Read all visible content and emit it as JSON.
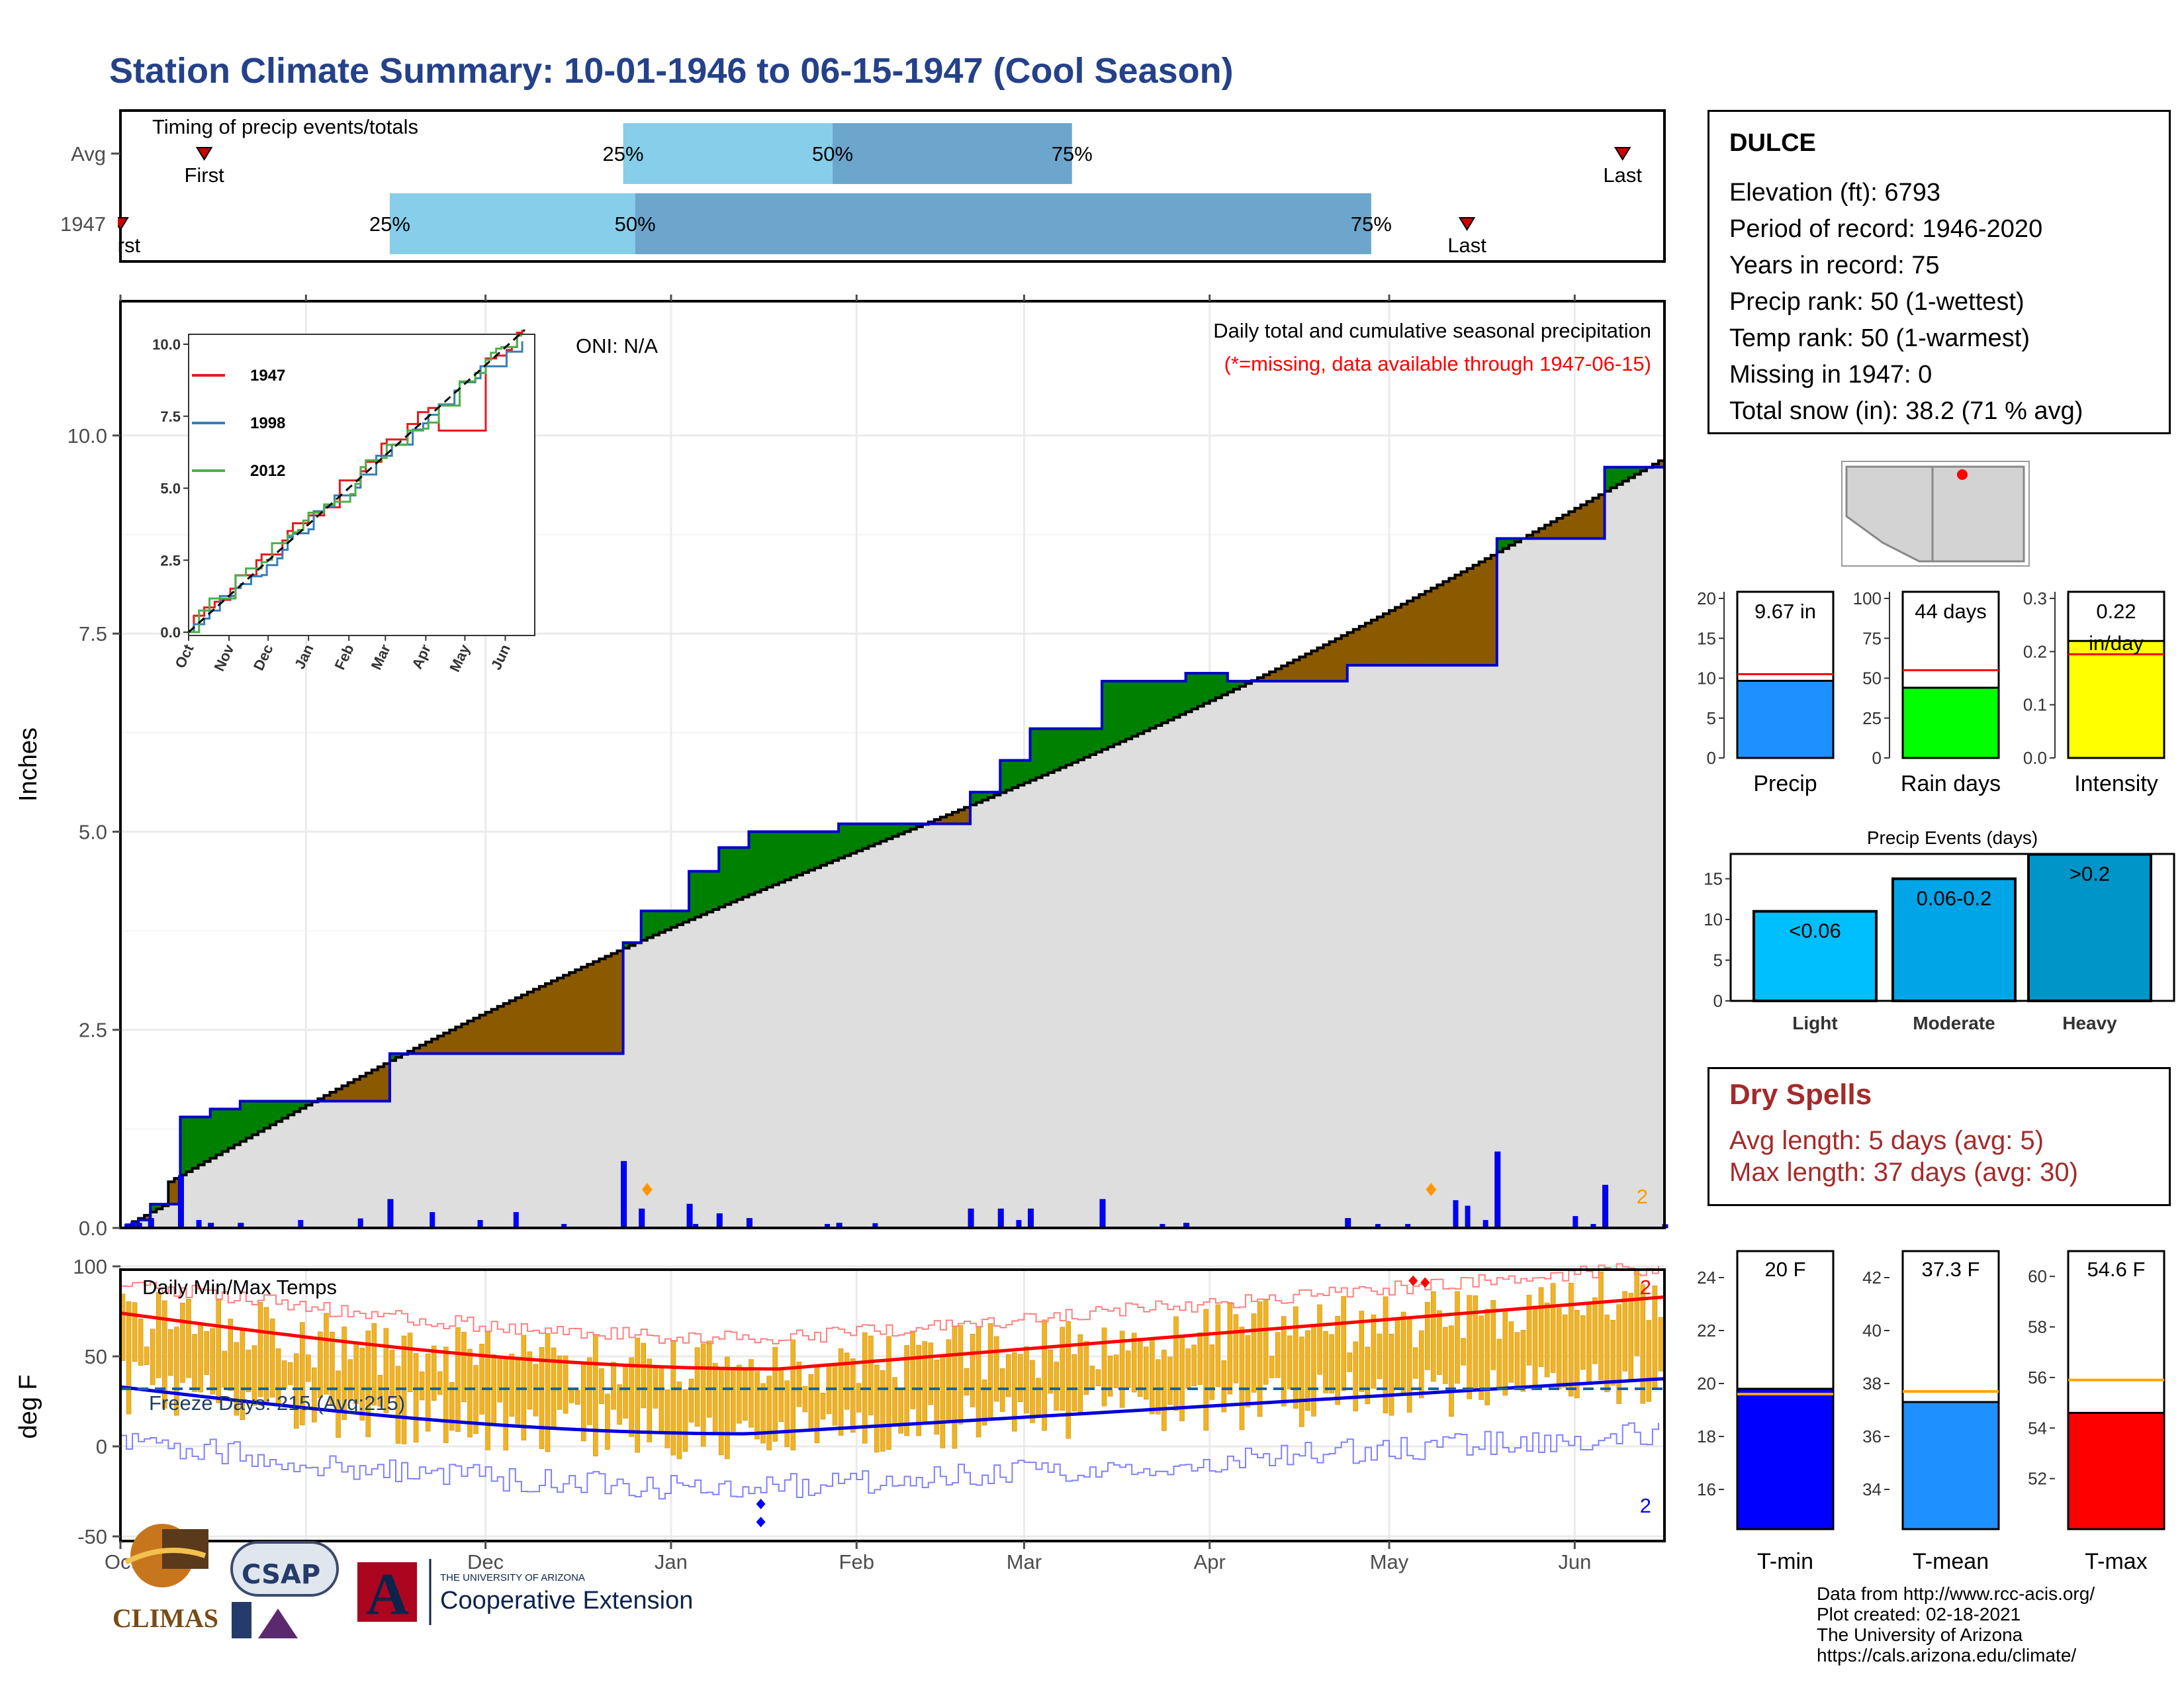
{
  "title": "Station Climate Summary: 10-01-1946 to 06-15-1947 (Cool Season)",
  "timing": {
    "label": "Timing of precip events/totals",
    "rows": [
      {
        "name": "Avg",
        "first_day": 14,
        "q25_day": 84,
        "q50_day": 119,
        "q75_day": 159,
        "last_day": 251,
        "first_label": "First",
        "last_label": "Last"
      },
      {
        "name": "1947",
        "first_day": 0,
        "q25_day": 45,
        "q50_day": 86,
        "q75_day": 209,
        "last_day": 225,
        "first_label": "First",
        "last_label": "Last"
      }
    ],
    "pct_labels": [
      "25%",
      "50%",
      "75%"
    ],
    "colors": {
      "light": "#87ceeb",
      "dark": "#6ca6cd",
      "marker": "#cc0000"
    }
  },
  "precip_chart": {
    "ylabel": "Inches",
    "oni_label": "ONI: N/A",
    "note_title": "Daily total and cumulative seasonal precipitation",
    "note_missing": "(*=missing, data available through 1947-06-15)",
    "corner_count": "2",
    "yticks": [
      "0.0",
      "2.5",
      "5.0",
      "7.5",
      "10.0"
    ],
    "ylim": [
      0,
      11
    ]
  },
  "inset": {
    "yticks": [
      "0.0",
      "2.5",
      "5.0",
      "7.5",
      "10.0"
    ],
    "xticks": [
      "Oct",
      "Nov",
      "Dec",
      "Jan",
      "Feb",
      "Mar",
      "Apr",
      "May",
      "Jun"
    ],
    "legend": [
      {
        "name": "1947",
        "color": "#e41a1c"
      },
      {
        "name": "1998",
        "color": "#377eb8"
      },
      {
        "name": "2012",
        "color": "#4daf4a"
      }
    ]
  },
  "temp_chart": {
    "ylabel": "deg F",
    "title": "Daily Min/Max Temps",
    "freeze_label": "Freeze Days: 215 (Avg:215)",
    "max_count": "2",
    "min_count": "2",
    "yticks": [
      "-50",
      "0",
      "50",
      "100"
    ],
    "ylim": [
      -55,
      103
    ],
    "xticks": [
      "Oct",
      "Nov",
      "Dec",
      "Jan",
      "Feb",
      "Mar",
      "Apr",
      "May",
      "Jun"
    ]
  },
  "station": {
    "name": "DULCE",
    "rows": [
      "Elevation (ft): 6793",
      "Period of record: 1946-2020",
      "Years in record: 75",
      "Precip rank: 50 (1-wettest)",
      "Temp rank: 50 (1-warmest)",
      "Missing in 1947: 0",
      "Total snow (in): 38.2 (71 % avg)"
    ]
  },
  "mini_bars": [
    {
      "label": "Precip",
      "value": 9.67,
      "value_label": "9.67 in",
      "avg": 10.5,
      "ymax": 20,
      "ticks": [
        "0",
        "5",
        "10",
        "15",
        "20"
      ],
      "color": "#1e90ff"
    },
    {
      "label": "Rain days",
      "value": 44,
      "value_label": "44 days",
      "avg": 55,
      "ymax": 100,
      "ticks": [
        "0",
        "25",
        "50",
        "75",
        "100"
      ],
      "color": "#00ff00"
    },
    {
      "label": "Intensity",
      "value": 0.22,
      "value_label": "0.22 in/day",
      "avg": 0.195,
      "ymax": 0.3,
      "ticks": [
        "0.0",
        "0.1",
        "0.2",
        "0.3"
      ],
      "color": "#ffff00"
    }
  ],
  "precip_events": {
    "title": "Precip Events (days)",
    "yticks": [
      "0",
      "5",
      "10",
      "15"
    ],
    "categories": [
      "Light",
      "Moderate",
      "Heavy"
    ],
    "bin_labels": [
      "<0.06",
      "0.06-0.2",
      ">0.2"
    ],
    "values": [
      11,
      15,
      18
    ],
    "colors": [
      "#00bfff",
      "#00a5e8",
      "#0095c8"
    ]
  },
  "dry_spells": {
    "title": "Dry Spells",
    "avg_line": "Avg length: 5 days (avg: 5)",
    "max_line": "Max length: 37 days (avg: 30)"
  },
  "temp_bars": [
    {
      "label": "T-min",
      "value": 19.8,
      "value_label": "20 F",
      "avg": 19.6,
      "ymin": 14.5,
      "ymax": 25,
      "ticks": [
        "16",
        "18",
        "20",
        "22",
        "24"
      ],
      "color": "#0000ff"
    },
    {
      "label": "T-mean",
      "value": 37.3,
      "value_label": "37.3 F",
      "avg": 37.7,
      "ymin": 32.5,
      "ymax": 43,
      "ticks": [
        "34",
        "36",
        "38",
        "40",
        "42"
      ],
      "color": "#1e90ff"
    },
    {
      "label": "T-max",
      "value": 54.6,
      "value_label": "54.6 F",
      "avg": 55.9,
      "ymin": 50,
      "ymax": 61,
      "ticks": [
        "52",
        "54",
        "56",
        "58",
        "60"
      ],
      "color": "#ff0000"
    }
  ],
  "footer": [
    "Data from http://www.rcc-acis.org/",
    "Plot created: 02-18-2021",
    "The University of Arizona",
    "https://cals.arizona.edu/climate/"
  ],
  "logos": {
    "climas": "CLIMAS",
    "csap": "CSAP",
    "ua_small": "THE UNIVERSITY OF ARIZONA",
    "ua_big": "Cooperative Extension"
  },
  "chart_data": [
    {
      "type": "area",
      "title": "Daily total and cumulative seasonal precipitation",
      "ylabel": "Inches",
      "x_start": "1946-10-01",
      "ylim": [
        0,
        11
      ],
      "series": [
        {
          "name": "1947",
          "x": [
            0,
            3,
            5,
            10,
            15,
            20,
            45,
            84,
            87,
            95,
            100,
            105,
            120,
            142,
            147,
            152,
            164,
            178,
            185,
            205,
            230,
            248,
            258
          ],
          "values": [
            0,
            0.1,
            0.3,
            1.4,
            1.5,
            1.6,
            2.2,
            3.6,
            4.0,
            4.5,
            4.8,
            5.0,
            5.1,
            5.5,
            5.9,
            6.3,
            6.9,
            7.0,
            6.9,
            7.1,
            8.7,
            9.6,
            9.67
          ]
        }
      ]
    },
    {
      "type": "bar",
      "title": "Daily Min/Max Temps",
      "ylabel": "deg F",
      "x_start": "1946-10-01",
      "ylim": [
        -55,
        103
      ],
      "series": [
        {
          "name": "avg max",
          "x": [
            0,
            30,
            60,
            92,
            123,
            151,
            182,
            212,
            258
          ],
          "values": [
            74,
            63,
            52,
            43,
            47,
            54,
            63,
            72,
            80
          ]
        },
        {
          "name": "avg min",
          "x": [
            0,
            30,
            60,
            92,
            123,
            151,
            182,
            212,
            258
          ],
          "values": [
            33,
            24,
            14,
            7,
            10,
            16,
            23,
            30,
            38
          ]
        }
      ]
    }
  ]
}
